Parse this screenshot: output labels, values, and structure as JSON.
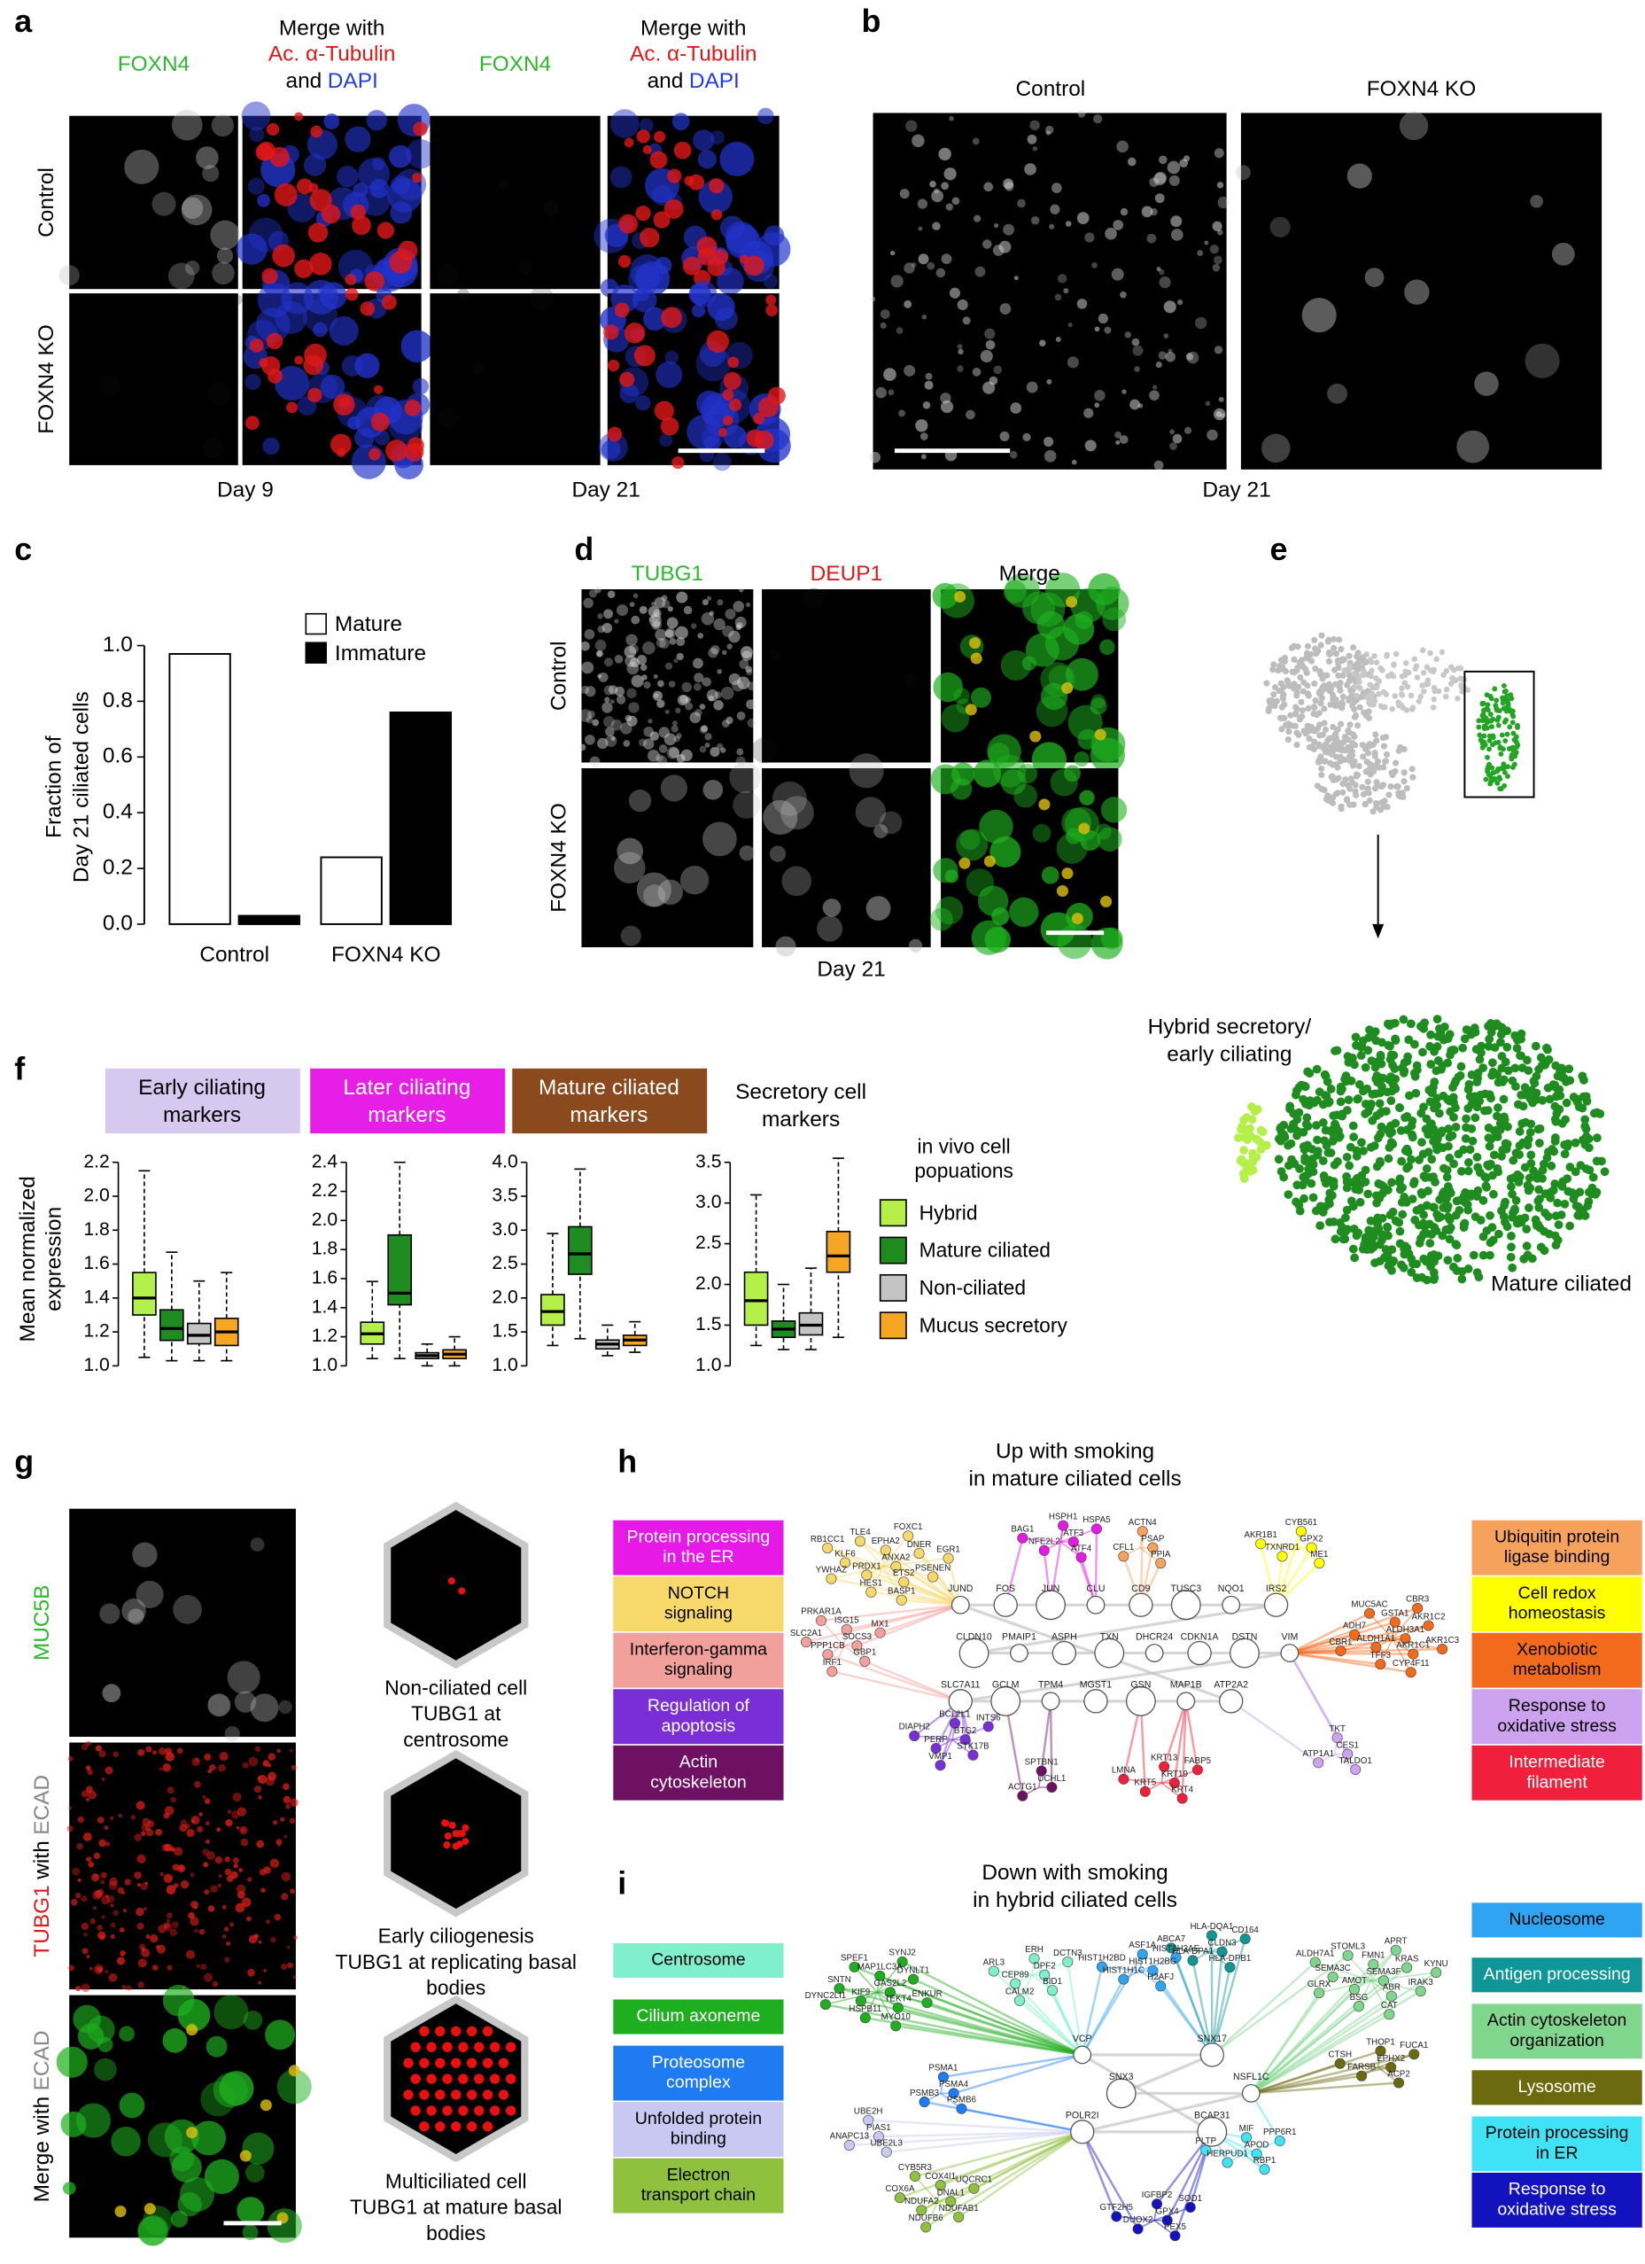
{
  "panel_a": {
    "label": "a",
    "foxn4": "FOXN4",
    "merge": [
      "Merge with",
      "Ac. α-Tubulin",
      "and",
      "DAPI"
    ],
    "rows": [
      "Control",
      "FOXN4 KO"
    ],
    "days": [
      "Day 9",
      "Day 21"
    ]
  },
  "panel_b": {
    "label": "b",
    "columns": [
      "Control",
      "FOXN4 KO"
    ],
    "day": "Day 21"
  },
  "panel_c": {
    "label": "c"
  },
  "panel_d": {
    "label": "d",
    "columns": [
      "TUBG1",
      "DEUP1",
      "Merge"
    ],
    "rows": [
      "Control",
      "FOXN4 KO"
    ],
    "day": "Day 21"
  },
  "panel_e": {
    "label": "e",
    "clusters": [
      "Hybrid secretory/",
      "early ciliating",
      "Mature ciliated"
    ]
  },
  "panel_f": {
    "label": "f",
    "ylabel": [
      "Mean normalized",
      "expression"
    ],
    "legend_title": [
      "in vivo cell",
      "popuations"
    ],
    "legend": [
      {
        "name": "Hybrid",
        "color": "#b5f04a"
      },
      {
        "name": "Mature ciliated",
        "color": "#1e8c1e"
      },
      {
        "name": "Non-ciliated",
        "color": "#c4c4c4"
      },
      {
        "name": "Mucus secretory",
        "color": "#f5a623"
      }
    ]
  },
  "panel_g": {
    "label": "g",
    "rows": [
      [
        "MUC5B"
      ],
      [
        "TUBG1",
        "with",
        "ECAD"
      ],
      [
        "Merge with",
        "ECAD"
      ]
    ],
    "diagrams": [
      [
        "Non-ciliated cell",
        "TUBG1 at",
        "centrosome"
      ],
      [
        "Early ciliogenesis",
        "TUBG1 at replicating basal",
        "bodies"
      ],
      [
        "Multiciliated cell",
        "TUBG1 at mature basal",
        "bodies"
      ]
    ]
  },
  "panel_h": {
    "label": "h",
    "title": [
      "Up with smoking",
      "in mature ciliated cells"
    ],
    "left_modules": [
      {
        "name": [
          "Protein processing",
          "in the ER"
        ],
        "color": "#e619e6",
        "genes": [
          "ATF3",
          "NFE2L2",
          "HSPH1",
          "ATF4",
          "BAG1",
          "HSPA5"
        ]
      },
      {
        "name": [
          "NOTCH",
          "signaling"
        ],
        "color": "#f7d86a",
        "genes": [
          "ANXA2",
          "PRDX1",
          "EPHA2",
          "ETS2",
          "KLF6",
          "DNER",
          "HES1",
          "TLE4",
          "PSENEN",
          "YWHAZ",
          "FOXC1",
          "BASP1",
          "RB1CC1",
          "EGR1"
        ]
      },
      {
        "name": [
          "Interferon-gamma",
          "signaling"
        ],
        "color": "#f2a09b",
        "genes": [
          "SOCS3",
          "PPP1CB",
          "ISG15",
          "GBP1",
          "SLC2A1",
          "MX1",
          "IRF1",
          "PRKAR1A"
        ]
      },
      {
        "name": [
          "Regulation of",
          "apoptosis"
        ],
        "color": "#7a2fd6",
        "genes": [
          "BTG2",
          "PERP",
          "BCL2L1",
          "STK17B",
          "DIAPH2",
          "INTS6",
          "VMP1"
        ]
      },
      {
        "name": [
          "Actin",
          "cytoskeleton"
        ],
        "color": "#6e1163",
        "genes": [
          "UCHL1",
          "ACTG1",
          "SPTBN1"
        ]
      }
    ],
    "right_modules": [
      {
        "name": [
          "Ubiquitin protein",
          "ligase binding"
        ],
        "color": "#f7a25c",
        "genes": [
          "PSAP",
          "CFL1",
          "ACTN4",
          "PPIA"
        ]
      },
      {
        "name": [
          "Cell redox",
          "homeostasis"
        ],
        "color": "#ffff00",
        "genes": [
          "GPX2",
          "TXNRD1",
          "CYB561",
          "ME1",
          "AKR1B1"
        ]
      },
      {
        "name": [
          "Xenobiotic",
          "metabolism"
        ],
        "color": "#f26b1d",
        "genes": [
          "ALDH3A1",
          "ALDH1A1",
          "GSTA1",
          "AKR1C1",
          "ADH7",
          "AKR1C2",
          "TFF3",
          "MUC5AC",
          "AKR1C3",
          "CBR1",
          "CBR3",
          "CYP4F11"
        ]
      },
      {
        "name": [
          "Response to",
          "oxidative stress"
        ],
        "color": "#cda3f0",
        "genes": [
          "CES1",
          "ATP1A1",
          "TKT",
          "TALDO1"
        ]
      },
      {
        "name": [
          "Intermediate",
          "filament"
        ],
        "color": "#f0203c",
        "genes": [
          "KRT19",
          "KRT5",
          "KRT13",
          "KRT4",
          "LMNA",
          "FABP5"
        ]
      }
    ],
    "hub_genes": [
      "JUND",
      "FOS",
      "JUN",
      "CLU",
      "CD9",
      "TUSC3",
      "NQO1",
      "IRS2",
      "CLDN10",
      "PMAIP1",
      "ASPH",
      "TXN",
      "DHCR24",
      "CDKN1A",
      "DSTN",
      "VIM",
      "SLC7A11",
      "GCLM",
      "TPM4",
      "MGST1",
      "GSN",
      "MAP1B",
      "ATP2A2"
    ]
  },
  "panel_i": {
    "label": "i",
    "title": [
      "Down with smoking",
      "in hybrid ciliated cells"
    ],
    "left_modules": [
      {
        "name": [
          "Centrosome"
        ],
        "color": "#80f0cc",
        "genes": [
          "DPF2",
          "CEP89",
          "ERH",
          "BID1",
          "ARL3",
          "DCTN3",
          "CALM2"
        ]
      },
      {
        "name": [
          "Cilium axoneme"
        ],
        "color": "#1fae1f",
        "genes": [
          "GAS2L2",
          "KIF9",
          "MAP1LC3A",
          "TEKT4",
          "SNTN",
          "DYNLT1",
          "HSPB11",
          "SPEF1",
          "ENKUR",
          "DYNC2LI1",
          "SYNJ2",
          "MYO10"
        ]
      },
      {
        "name": [
          "Proteosome",
          "complex"
        ],
        "color": "#1f7bf2",
        "genes": [
          "PSMA4",
          "PSMB3",
          "PSMA1",
          "PSMB6"
        ]
      },
      {
        "name": [
          "Unfolded protein",
          "binding"
        ],
        "color": "#c8c8f2",
        "genes": [
          "PIAS1",
          "ANAPC13",
          "UBE2H",
          "UBE2L3"
        ]
      },
      {
        "name": [
          "Electron",
          "transport chain"
        ],
        "color": "#8fc13f",
        "genes": [
          "DNAL1",
          "NDUFA2",
          "COX4I1",
          "NDUFAB1",
          "COX6A",
          "UQCRC1",
          "NDUFB6",
          "CYB5R3"
        ]
      }
    ],
    "right_modules": [
      {
        "name": [
          "Nucleosome"
        ],
        "color": "#2fa4f2",
        "genes": [
          "HIST1H2BG",
          "HIST1H1C",
          "ASF1A",
          "H2AFJ",
          "HIST1H2BD",
          "HIST1H2AE"
        ]
      },
      {
        "name": [
          "Antigen processing"
        ],
        "color": "#0f9696",
        "genes": [
          "CLDN3",
          "HLA-DPA1",
          "HLA-DQA1",
          "HLA-DPB1",
          "ABCA7",
          "CD164"
        ]
      },
      {
        "name": [
          "Actin cytoskeleton",
          "organization"
        ],
        "color": "#7fd68c",
        "genes": [
          "SEMA3F",
          "AMOT",
          "FMN1",
          "ABR",
          "SEMA3C",
          "KRAS",
          "BSG",
          "STOML3",
          "IRAK3",
          "GLRX",
          "APRT",
          "CAT",
          "ALDH7A1",
          "KYNU"
        ]
      },
      {
        "name": [
          "Lysosome"
        ],
        "color": "#6b6a0e",
        "genes": [
          "EPHX2",
          "FARSB",
          "THOP1",
          "ACP2",
          "CTSH",
          "FUCA1"
        ]
      },
      {
        "name": [
          "Protein processing",
          "in ER"
        ],
        "color": "#3fe3f5",
        "genes": [
          "APOD",
          "HERPUD1",
          "MIF",
          "RBP1",
          "PLTP",
          "PPP6R1"
        ]
      },
      {
        "name": [
          "Response to",
          "oxidative stress"
        ],
        "color": "#1212bf",
        "genes": [
          "GPX4",
          "DUOX2",
          "IGFBP2",
          "PEX5",
          "GTF2H5",
          "SOD1"
        ]
      }
    ],
    "hub_genes": [
      "VCP",
      "SNX17",
      "SNX3",
      "NSFL1C",
      "POLR2I",
      "BCAP31"
    ]
  },
  "chart_data": [
    {
      "type": "bar",
      "ylabel": [
        "Fraction of",
        "Day 21 ciliated cells"
      ],
      "categories": [
        "Control",
        "FOXN4 KO"
      ],
      "series": [
        {
          "name": "Mature",
          "color": "#ffffff",
          "values": [
            0.97,
            0.24
          ]
        },
        {
          "name": "Immature",
          "color": "#000000",
          "values": [
            0.03,
            0.76
          ]
        }
      ],
      "ylim": [
        0,
        1.0
      ],
      "yticks": [
        {
          "value": 0,
          "label": "0.0"
        },
        0.2,
        0.4,
        0.6,
        0.8,
        {
          "value": 1,
          "label": "1.0"
        }
      ],
      "legend": "upper right"
    },
    {
      "type": "box",
      "title": [
        "Early ciliating",
        "markers"
      ],
      "title_color": "#d6c8ee",
      "ylim": [
        1.0,
        2.2
      ],
      "yticks": [
        {
          "value": 1,
          "label": "1.0"
        },
        1.2,
        1.4,
        1.6,
        1.8,
        {
          "value": 2,
          "label": "2.0"
        },
        2.2
      ],
      "boxes": [
        {
          "whisker_low": 1.05,
          "q1": 1.3,
          "median": 1.4,
          "q3": 1.55,
          "whisker_high": 2.15
        },
        {
          "whisker_low": 1.03,
          "q1": 1.15,
          "median": 1.22,
          "q3": 1.33,
          "whisker_high": 1.67
        },
        {
          "whisker_low": 1.03,
          "q1": 1.13,
          "median": 1.18,
          "q3": 1.25,
          "whisker_high": 1.5
        },
        {
          "whisker_low": 1.03,
          "q1": 1.12,
          "median": 1.2,
          "q3": 1.28,
          "whisker_high": 1.55
        }
      ]
    },
    {
      "type": "box",
      "title": [
        "Later ciliating",
        "markers"
      ],
      "title_color": "#e61ee6",
      "ylim": [
        1.0,
        2.4
      ],
      "yticks": [
        {
          "value": 1,
          "label": "1.0"
        },
        1.2,
        1.4,
        1.6,
        1.8,
        {
          "value": 2,
          "label": "2.0"
        },
        2.2,
        2.4
      ],
      "boxes": [
        {
          "whisker_low": 1.05,
          "q1": 1.15,
          "median": 1.22,
          "q3": 1.3,
          "whisker_high": 1.58
        },
        {
          "whisker_low": 1.05,
          "q1": 1.42,
          "median": 1.5,
          "q3": 1.9,
          "whisker_high": 2.4
        },
        {
          "whisker_low": 1.0,
          "q1": 1.05,
          "median": 1.07,
          "q3": 1.09,
          "whisker_high": 1.15
        },
        {
          "whisker_low": 1.0,
          "q1": 1.05,
          "median": 1.08,
          "q3": 1.11,
          "whisker_high": 1.2
        }
      ]
    },
    {
      "type": "box",
      "title": [
        "Mature ciliated",
        "markers"
      ],
      "title_color": "#8b4a1e",
      "ylim": [
        1.0,
        4.0
      ],
      "yticks": [
        {
          "value": 1,
          "label": "1.0"
        },
        1.5,
        {
          "value": 2,
          "label": "2.0"
        },
        2.5,
        {
          "value": 3,
          "label": "3.0"
        },
        3.5,
        {
          "value": 4,
          "label": "4.0"
        }
      ],
      "boxes": [
        {
          "whisker_low": 1.3,
          "q1": 1.6,
          "median": 1.8,
          "q3": 2.05,
          "whisker_high": 2.95
        },
        {
          "whisker_low": 1.4,
          "q1": 2.35,
          "median": 2.65,
          "q3": 3.05,
          "whisker_high": 3.9
        },
        {
          "whisker_low": 1.15,
          "q1": 1.25,
          "median": 1.32,
          "q3": 1.38,
          "whisker_high": 1.6
        },
        {
          "whisker_low": 1.2,
          "q1": 1.3,
          "median": 1.38,
          "q3": 1.45,
          "whisker_high": 1.65
        }
      ]
    },
    {
      "type": "box",
      "title": [
        "Secretory cell",
        "markers"
      ],
      "ylim": [
        1.0,
        3.5
      ],
      "yticks": [
        {
          "value": 1,
          "label": "1.0"
        },
        1.5,
        {
          "value": 2,
          "label": "2.0"
        },
        2.5,
        {
          "value": 3,
          "label": "3.0"
        },
        3.5
      ],
      "boxes": [
        {
          "whisker_low": 1.25,
          "q1": 1.5,
          "median": 1.8,
          "q3": 2.15,
          "whisker_high": 3.1
        },
        {
          "whisker_low": 1.2,
          "q1": 1.35,
          "median": 1.45,
          "q3": 1.55,
          "whisker_high": 2.0
        },
        {
          "whisker_low": 1.2,
          "q1": 1.38,
          "median": 1.5,
          "q3": 1.65,
          "whisker_high": 2.2
        },
        {
          "whisker_low": 1.35,
          "q1": 2.15,
          "median": 2.35,
          "q3": 2.65,
          "whisker_high": 3.55
        }
      ]
    }
  ]
}
